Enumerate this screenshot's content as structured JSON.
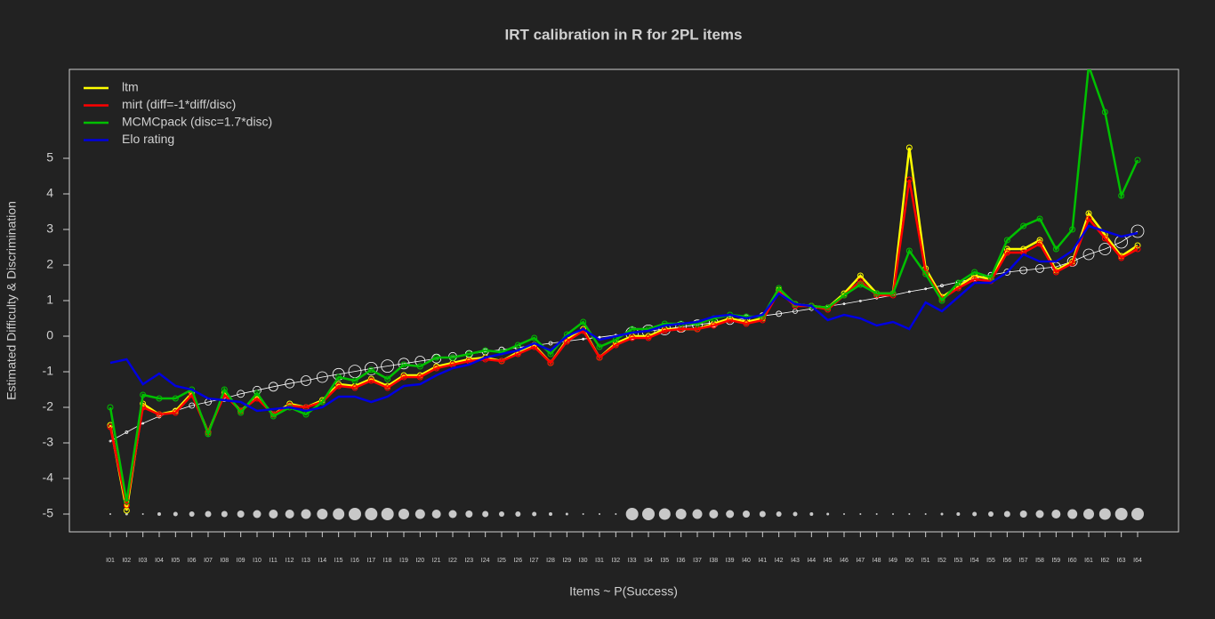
{
  "chart_data": {
    "type": "line",
    "title": "IRT calibration in R for 2PL items",
    "x_label": "Items ~ P(Success)",
    "y_label": "Estimated Difficulty & Discrimination",
    "categories": [
      "I01",
      "I02",
      "I03",
      "I04",
      "I05",
      "I06",
      "I07",
      "I08",
      "I09",
      "I10",
      "I11",
      "I12",
      "I13",
      "I14",
      "I15",
      "I16",
      "I17",
      "I18",
      "I19",
      "I20",
      "I21",
      "I22",
      "I23",
      "I24",
      "I25",
      "I26",
      "I27",
      "I28",
      "I29",
      "I30",
      "I31",
      "I32",
      "I33",
      "I34",
      "I35",
      "I36",
      "I37",
      "I38",
      "I39",
      "I40",
      "I41",
      "I42",
      "I43",
      "I44",
      "I45",
      "I46",
      "I47",
      "I48",
      "I49",
      "I50",
      "I51",
      "I52",
      "I53",
      "I54",
      "I55",
      "I56",
      "I57",
      "I58",
      "I59",
      "I60",
      "I61",
      "I62",
      "I63",
      "I64"
    ],
    "ylim": [
      -5.5,
      7.5
    ],
    "yticks": [
      -5,
      -4,
      -3,
      -2,
      -1,
      0,
      1,
      2,
      3,
      4,
      5
    ],
    "legend": "top-left",
    "series": [
      {
        "name": "ltm",
        "color": "#ffff00",
        "values": [
          -2.5,
          -4.9,
          -1.9,
          -2.2,
          -2.1,
          -1.6,
          -2.7,
          -1.6,
          -2.1,
          -1.7,
          -2.2,
          -1.9,
          -2.0,
          -1.8,
          -1.35,
          -1.4,
          -1.2,
          -1.4,
          -1.1,
          -1.1,
          -0.85,
          -0.75,
          -0.65,
          -0.6,
          -0.7,
          -0.45,
          -0.25,
          -0.75,
          -0.1,
          0.2,
          -0.6,
          -0.2,
          0.0,
          0.0,
          0.2,
          0.2,
          0.2,
          0.35,
          0.5,
          0.4,
          0.5,
          1.3,
          0.9,
          0.85,
          0.8,
          1.2,
          1.7,
          1.2,
          1.2,
          5.3,
          1.9,
          1.1,
          1.4,
          1.7,
          1.6,
          2.45,
          2.45,
          2.7,
          1.85,
          2.1,
          3.45,
          2.85,
          2.25,
          2.55
        ]
      },
      {
        "name": "mirt (diff=-1*diff/disc)",
        "color": "#ff0000",
        "values": [
          -2.55,
          -4.75,
          -2.0,
          -2.2,
          -2.15,
          -1.65,
          -2.7,
          -1.65,
          -2.1,
          -1.75,
          -2.2,
          -1.95,
          -2.0,
          -1.85,
          -1.4,
          -1.45,
          -1.25,
          -1.45,
          -1.15,
          -1.15,
          -0.9,
          -0.8,
          -0.7,
          -0.65,
          -0.7,
          -0.5,
          -0.3,
          -0.75,
          -0.15,
          0.15,
          -0.6,
          -0.25,
          -0.05,
          -0.05,
          0.15,
          0.2,
          0.2,
          0.3,
          0.45,
          0.35,
          0.45,
          1.25,
          0.85,
          0.85,
          0.75,
          1.15,
          1.55,
          1.15,
          1.15,
          4.4,
          1.8,
          1.05,
          1.35,
          1.6,
          1.55,
          2.35,
          2.35,
          2.6,
          1.8,
          2.05,
          3.3,
          2.75,
          2.2,
          2.45
        ]
      },
      {
        "name": "MCMCpack (disc=1.7*disc)",
        "color": "#00c000",
        "values": [
          -2.0,
          -4.65,
          -1.65,
          -1.75,
          -1.75,
          -1.5,
          -2.75,
          -1.5,
          -2.15,
          -1.6,
          -2.25,
          -2.0,
          -2.2,
          -1.85,
          -1.15,
          -1.25,
          -0.95,
          -1.2,
          -0.8,
          -0.85,
          -0.6,
          -0.6,
          -0.5,
          -0.4,
          -0.45,
          -0.25,
          -0.05,
          -0.5,
          0.05,
          0.4,
          -0.3,
          -0.1,
          0.2,
          0.2,
          0.35,
          0.35,
          0.35,
          0.5,
          0.6,
          0.55,
          0.55,
          1.35,
          0.9,
          0.85,
          0.8,
          1.15,
          1.45,
          1.2,
          1.2,
          2.4,
          1.75,
          1.0,
          1.5,
          1.8,
          1.65,
          2.7,
          3.1,
          3.3,
          2.45,
          3.0,
          7.6,
          6.3,
          3.95,
          4.95
        ]
      },
      {
        "name": "Elo rating",
        "color": "#0000e0",
        "values": [
          -0.75,
          -0.65,
          -1.35,
          -1.05,
          -1.4,
          -1.5,
          -1.75,
          -1.8,
          -1.85,
          -2.1,
          -2.05,
          -2.0,
          -2.1,
          -2.0,
          -1.7,
          -1.7,
          -1.85,
          -1.7,
          -1.4,
          -1.35,
          -1.1,
          -0.9,
          -0.8,
          -0.6,
          -0.5,
          -0.4,
          -0.2,
          -0.4,
          0.0,
          0.2,
          -0.1,
          0.0,
          0.1,
          0.15,
          0.3,
          0.35,
          0.4,
          0.55,
          0.6,
          0.5,
          0.6,
          1.2,
          0.9,
          0.85,
          0.45,
          0.6,
          0.5,
          0.3,
          0.4,
          0.2,
          0.95,
          0.7,
          1.1,
          1.5,
          1.5,
          1.8,
          2.3,
          2.1,
          2.1,
          2.4,
          3.1,
          2.95,
          2.8,
          2.9
        ]
      }
    ],
    "reference": {
      "color": "#ffffff",
      "values": [
        -2.95,
        -2.7,
        -2.45,
        -2.25,
        -2.1,
        -1.95,
        -1.85,
        -1.75,
        -1.62,
        -1.52,
        -1.42,
        -1.33,
        -1.25,
        -1.15,
        -1.07,
        -0.99,
        -0.91,
        -0.84,
        -0.77,
        -0.7,
        -0.63,
        -0.57,
        -0.5,
        -0.44,
        -0.38,
        -0.32,
        -0.26,
        -0.2,
        -0.14,
        -0.08,
        -0.03,
        0.03,
        0.08,
        0.14,
        0.2,
        0.26,
        0.32,
        0.38,
        0.44,
        0.5,
        0.57,
        0.63,
        0.7,
        0.77,
        0.84,
        0.91,
        0.99,
        1.07,
        1.15,
        1.25,
        1.33,
        1.42,
        1.52,
        1.62,
        1.72,
        1.8,
        1.85,
        1.9,
        1.95,
        2.1,
        2.3,
        2.45,
        2.65,
        2.95
      ]
    },
    "size_row": -5,
    "sizes": [
      1,
      1.5,
      1,
      2,
      2.5,
      3,
      3.5,
      3.5,
      4,
      4.5,
      5,
      5,
      5.5,
      6,
      6.5,
      7,
      7,
      7,
      6,
      5.5,
      5,
      4.5,
      4,
      3.5,
      3,
      3,
      2.5,
      2,
      1.5,
      1,
      1,
      1,
      7,
      7,
      6.5,
      6,
      5.5,
      5,
      4.5,
      4,
      3.5,
      3,
      2.5,
      2,
      1.5,
      1,
      1,
      1,
      1,
      1,
      1,
      1.5,
      2,
      2.5,
      3,
      3.5,
      4,
      4.5,
      5,
      5.5,
      6,
      6.5,
      7,
      7
    ]
  }
}
